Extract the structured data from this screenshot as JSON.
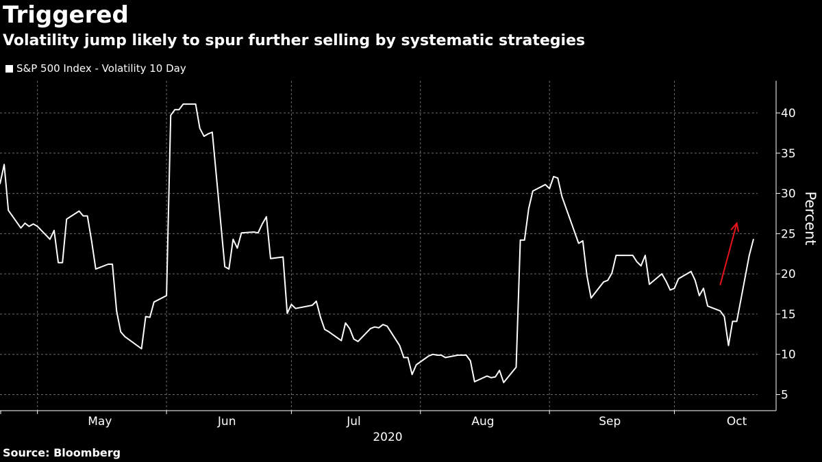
{
  "title": "Triggered",
  "subtitle": "Volatility jump likely to spur further selling by systematic strategies",
  "source": "Source: Bloomberg",
  "colors": {
    "background": "#000000",
    "line": "#ffffff",
    "grid": "#6e6e6e",
    "annotation_arrow": "#e8141b"
  },
  "chart_data": {
    "type": "line",
    "title": "Triggered",
    "subtitle": "Volatility jump likely to spur further selling by systematic strategies",
    "ylabel": "Percent",
    "xlabel": "2020",
    "y_axis_side": "right",
    "ylim": [
      3,
      44
    ],
    "yticks": [
      5,
      10,
      15,
      20,
      25,
      30,
      35,
      40
    ],
    "xlim": [
      "2020-04-22",
      "2020-10-21"
    ],
    "x_ticks_months": [
      {
        "label": "May",
        "start": "2020-05-01",
        "end": "2020-05-31"
      },
      {
        "label": "Jun",
        "start": "2020-06-01",
        "end": "2020-06-30"
      },
      {
        "label": "Jul",
        "start": "2020-07-01",
        "end": "2020-07-31"
      },
      {
        "label": "Aug",
        "start": "2020-08-01",
        "end": "2020-08-31"
      },
      {
        "label": "Sep",
        "start": "2020-09-01",
        "end": "2020-09-30"
      },
      {
        "label": "Oct",
        "start": "2020-10-01",
        "end": "2020-10-31"
      }
    ],
    "grid": true,
    "legend_placement": "top-left",
    "series": [
      {
        "name": "S&P 500 Index - Volatility 10 Day",
        "color": "#ffffff",
        "points": [
          [
            "2020-04-22",
            31.2
          ],
          [
            "2020-04-23",
            33.6
          ],
          [
            "2020-04-24",
            27.9
          ],
          [
            "2020-04-27",
            25.7
          ],
          [
            "2020-04-28",
            26.3
          ],
          [
            "2020-04-29",
            25.9
          ],
          [
            "2020-04-30",
            26.2
          ],
          [
            "2020-05-01",
            25.9
          ],
          [
            "2020-05-04",
            24.3
          ],
          [
            "2020-05-05",
            25.4
          ],
          [
            "2020-05-06",
            21.4
          ],
          [
            "2020-05-07",
            21.4
          ],
          [
            "2020-05-08",
            26.8
          ],
          [
            "2020-05-11",
            27.8
          ],
          [
            "2020-05-12",
            27.2
          ],
          [
            "2020-05-13",
            27.2
          ],
          [
            "2020-05-14",
            24.1
          ],
          [
            "2020-05-15",
            20.6
          ],
          [
            "2020-05-18",
            21.2
          ],
          [
            "2020-05-19",
            21.2
          ],
          [
            "2020-05-20",
            15.4
          ],
          [
            "2020-05-21",
            12.8
          ],
          [
            "2020-05-22",
            12.2
          ],
          [
            "2020-05-26",
            10.7
          ],
          [
            "2020-05-27",
            14.7
          ],
          [
            "2020-05-28",
            14.6
          ],
          [
            "2020-05-29",
            16.5
          ],
          [
            "2020-06-01",
            17.3
          ],
          [
            "2020-06-02",
            39.7
          ],
          [
            "2020-06-03",
            40.4
          ],
          [
            "2020-06-04",
            40.4
          ],
          [
            "2020-06-05",
            41.1
          ],
          [
            "2020-06-08",
            41.1
          ],
          [
            "2020-06-09",
            38.1
          ],
          [
            "2020-06-10",
            37.1
          ],
          [
            "2020-06-11",
            37.4
          ],
          [
            "2020-06-12",
            37.6
          ],
          [
            "2020-06-15",
            20.9
          ],
          [
            "2020-06-16",
            20.6
          ],
          [
            "2020-06-17",
            24.3
          ],
          [
            "2020-06-18",
            23.2
          ],
          [
            "2020-06-19",
            25.1
          ],
          [
            "2020-06-22",
            25.2
          ],
          [
            "2020-06-23",
            25.1
          ],
          [
            "2020-06-24",
            26.2
          ],
          [
            "2020-06-25",
            27.1
          ],
          [
            "2020-06-26",
            21.9
          ],
          [
            "2020-06-29",
            22.1
          ],
          [
            "2020-06-30",
            15.1
          ],
          [
            "2020-07-01",
            16.2
          ],
          [
            "2020-07-02",
            15.7
          ],
          [
            "2020-07-06",
            16.1
          ],
          [
            "2020-07-07",
            16.6
          ],
          [
            "2020-07-08",
            14.6
          ],
          [
            "2020-07-09",
            13.1
          ],
          [
            "2020-07-10",
            12.8
          ],
          [
            "2020-07-13",
            11.7
          ],
          [
            "2020-07-14",
            13.9
          ],
          [
            "2020-07-15",
            13.2
          ],
          [
            "2020-07-16",
            11.9
          ],
          [
            "2020-07-17",
            11.6
          ],
          [
            "2020-07-20",
            13.2
          ],
          [
            "2020-07-21",
            13.4
          ],
          [
            "2020-07-22",
            13.3
          ],
          [
            "2020-07-23",
            13.7
          ],
          [
            "2020-07-24",
            13.5
          ],
          [
            "2020-07-27",
            11.1
          ],
          [
            "2020-07-28",
            9.6
          ],
          [
            "2020-07-29",
            9.6
          ],
          [
            "2020-07-30",
            7.5
          ],
          [
            "2020-07-31",
            8.7
          ],
          [
            "2020-08-03",
            9.8
          ],
          [
            "2020-08-04",
            10.0
          ],
          [
            "2020-08-05",
            9.9
          ],
          [
            "2020-08-06",
            9.9
          ],
          [
            "2020-08-07",
            9.6
          ],
          [
            "2020-08-10",
            9.9
          ],
          [
            "2020-08-11",
            9.9
          ],
          [
            "2020-08-12",
            9.9
          ],
          [
            "2020-08-13",
            9.2
          ],
          [
            "2020-08-14",
            6.6
          ],
          [
            "2020-08-17",
            7.3
          ],
          [
            "2020-08-18",
            7.1
          ],
          [
            "2020-08-19",
            7.2
          ],
          [
            "2020-08-20",
            8.0
          ],
          [
            "2020-08-21",
            6.5
          ],
          [
            "2020-08-24",
            8.4
          ],
          [
            "2020-08-25",
            24.2
          ],
          [
            "2020-08-26",
            24.2
          ],
          [
            "2020-08-27",
            28.1
          ],
          [
            "2020-08-28",
            30.3
          ],
          [
            "2020-08-31",
            31.1
          ],
          [
            "2020-09-01",
            30.6
          ],
          [
            "2020-09-02",
            32.1
          ],
          [
            "2020-09-03",
            31.9
          ],
          [
            "2020-09-04",
            29.6
          ],
          [
            "2020-09-08",
            23.8
          ],
          [
            "2020-09-09",
            24.1
          ],
          [
            "2020-09-10",
            19.8
          ],
          [
            "2020-09-11",
            17.0
          ],
          [
            "2020-09-14",
            19.0
          ],
          [
            "2020-09-15",
            19.2
          ],
          [
            "2020-09-16",
            20.1
          ],
          [
            "2020-09-17",
            22.3
          ],
          [
            "2020-09-18",
            22.3
          ],
          [
            "2020-09-21",
            22.3
          ],
          [
            "2020-09-22",
            21.5
          ],
          [
            "2020-09-23",
            21.0
          ],
          [
            "2020-09-24",
            22.3
          ],
          [
            "2020-09-25",
            18.7
          ],
          [
            "2020-09-28",
            20.0
          ],
          [
            "2020-09-29",
            19.1
          ],
          [
            "2020-09-30",
            18.0
          ],
          [
            "2020-10-01",
            18.2
          ],
          [
            "2020-10-02",
            19.4
          ],
          [
            "2020-10-05",
            20.3
          ],
          [
            "2020-10-06",
            19.2
          ],
          [
            "2020-10-07",
            17.3
          ],
          [
            "2020-10-08",
            18.2
          ],
          [
            "2020-10-09",
            16.0
          ],
          [
            "2020-10-12",
            15.4
          ],
          [
            "2020-10-13",
            14.7
          ],
          [
            "2020-10-14",
            11.1
          ],
          [
            "2020-10-15",
            14.1
          ],
          [
            "2020-10-16",
            14.1
          ],
          [
            "2020-10-19",
            22.3
          ],
          [
            "2020-10-20",
            24.3
          ]
        ]
      }
    ],
    "annotations": [
      {
        "type": "arrow",
        "color": "#e8141b",
        "from": [
          "2020-10-12",
          18.6
        ],
        "to": [
          "2020-10-16",
          26.3
        ]
      }
    ]
  }
}
